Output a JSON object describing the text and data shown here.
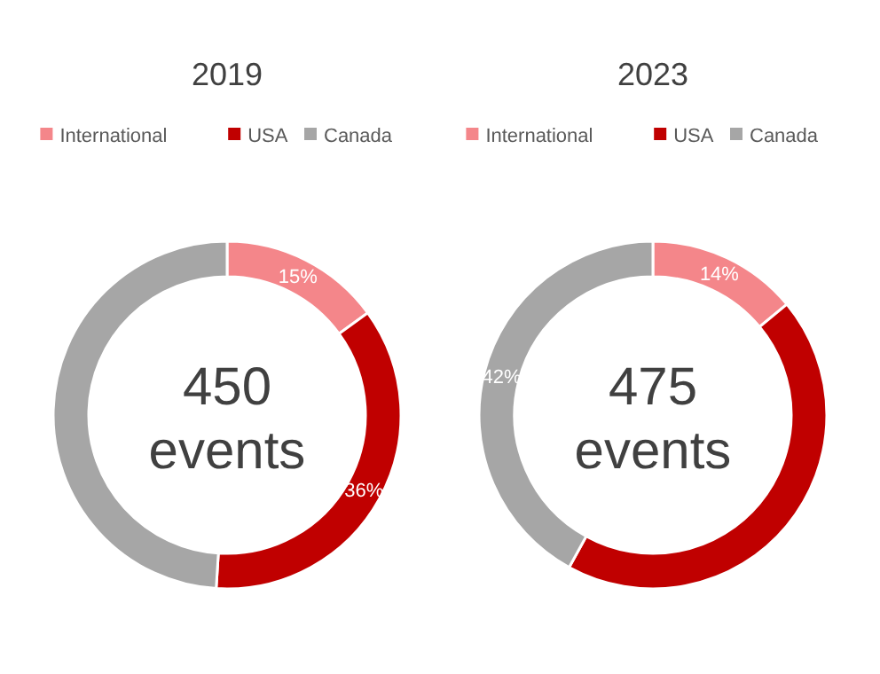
{
  "chart_data": [
    {
      "type": "donut",
      "title": "2019",
      "categories": [
        "International",
        "USA",
        "Canada"
      ],
      "values": [
        15,
        36,
        49
      ],
      "colors": [
        "#f4868a",
        "#c00000",
        "#a6a6a6"
      ],
      "value_labels": [
        "15%",
        "36%",
        null
      ],
      "legend": "top",
      "annotations": [
        "450 events"
      ]
    },
    {
      "type": "donut",
      "title": "2023",
      "categories": [
        "International",
        "USA",
        "Canada"
      ],
      "values": [
        14,
        44,
        42
      ],
      "colors": [
        "#f4868a",
        "#c00000",
        "#a6a6a6"
      ],
      "value_labels": [
        "14%",
        null,
        "42%"
      ],
      "legend": "top",
      "annotations": [
        "475 events"
      ]
    }
  ]
}
